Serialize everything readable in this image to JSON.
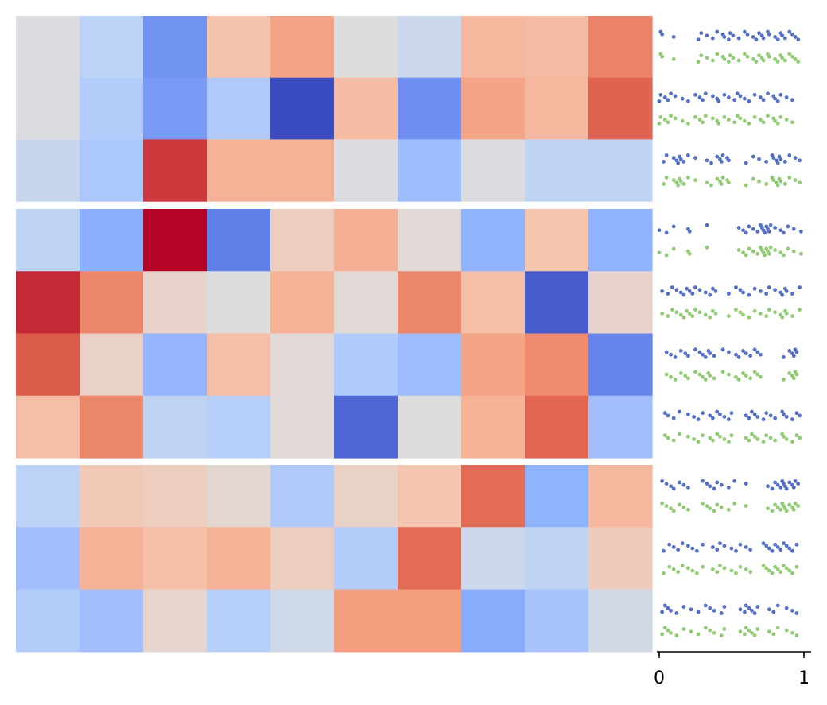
{
  "chart_data": {
    "type": "heatmap",
    "title": "",
    "xlabel": "",
    "ylabel": "",
    "colormap": "coolwarm",
    "value_range": [
      0,
      1
    ],
    "groups": [
      {
        "rows": [
          [
            0.49,
            0.39,
            0.17,
            0.63,
            0.72,
            0.5,
            0.44,
            0.66,
            0.65,
            0.8
          ],
          [
            0.49,
            0.36,
            0.19,
            0.35,
            0.0,
            0.65,
            0.16,
            0.72,
            0.66,
            0.87
          ],
          [
            0.43,
            0.34,
            0.93,
            0.68,
            0.68,
            0.49,
            0.3,
            0.49,
            0.4,
            0.4
          ]
        ]
      },
      {
        "rows": [
          [
            0.4,
            0.25,
            1.0,
            0.12,
            0.58,
            0.69,
            0.52,
            0.26,
            0.62,
            0.26
          ],
          [
            0.95,
            0.79,
            0.55,
            0.5,
            0.68,
            0.52,
            0.79,
            0.64,
            0.04,
            0.55
          ],
          [
            0.88,
            0.56,
            0.27,
            0.64,
            0.52,
            0.35,
            0.3,
            0.72,
            0.78,
            0.13
          ],
          [
            0.64,
            0.79,
            0.4,
            0.37,
            0.52,
            0.06,
            0.5,
            0.68,
            0.86,
            0.31
          ]
        ]
      },
      {
        "rows": [
          [
            0.39,
            0.6,
            0.58,
            0.53,
            0.35,
            0.56,
            0.62,
            0.85,
            0.26,
            0.66
          ],
          [
            0.31,
            0.68,
            0.64,
            0.68,
            0.58,
            0.36,
            0.85,
            0.44,
            0.4,
            0.59
          ],
          [
            0.36,
            0.31,
            0.54,
            0.37,
            0.45,
            0.74,
            0.74,
            0.24,
            0.33,
            0.46
          ]
        ]
      }
    ],
    "side_panel": {
      "type": "scatter",
      "xlim": [
        0,
        1
      ],
      "x_ticks": [
        "0",
        "1"
      ],
      "colors": {
        "series_a": "#5470c6",
        "series_b": "#91cc75"
      },
      "rows": [
        [
          0.01,
          0.02,
          0.1,
          0.27,
          0.29,
          0.33,
          0.37,
          0.4,
          0.44,
          0.45,
          0.48,
          0.49,
          0.51,
          0.55,
          0.59,
          0.61,
          0.65,
          0.67,
          0.69,
          0.71,
          0.72,
          0.75,
          0.76,
          0.8,
          0.82,
          0.84,
          0.85,
          0.87,
          0.9,
          0.92,
          0.94,
          0.96
        ],
        [
          0.0,
          0.01,
          0.04,
          0.06,
          0.08,
          0.11,
          0.16,
          0.2,
          0.25,
          0.28,
          0.3,
          0.32,
          0.37,
          0.4,
          0.41,
          0.45,
          0.48,
          0.52,
          0.54,
          0.56,
          0.59,
          0.62,
          0.66,
          0.7,
          0.72,
          0.75,
          0.79,
          0.8,
          0.82,
          0.84,
          0.88,
          0.92
        ],
        [
          0.03,
          0.05,
          0.1,
          0.12,
          0.13,
          0.14,
          0.15,
          0.17,
          0.2,
          0.25,
          0.33,
          0.36,
          0.4,
          0.42,
          0.43,
          0.44,
          0.47,
          0.48,
          0.6,
          0.65,
          0.69,
          0.74,
          0.78,
          0.79,
          0.81,
          0.82,
          0.83,
          0.84,
          0.87,
          0.9,
          0.94,
          0.97
        ],
        [
          0.0,
          0.05,
          0.1,
          0.2,
          0.21,
          0.33,
          0.55,
          0.58,
          0.6,
          0.62,
          0.65,
          0.68,
          0.7,
          0.71,
          0.72,
          0.73,
          0.74,
          0.75,
          0.76,
          0.77,
          0.8,
          0.84,
          0.86,
          0.89,
          0.93,
          0.98
        ],
        [
          0.02,
          0.06,
          0.09,
          0.12,
          0.15,
          0.17,
          0.19,
          0.21,
          0.23,
          0.25,
          0.28,
          0.32,
          0.35,
          0.37,
          0.39,
          0.48,
          0.53,
          0.56,
          0.58,
          0.62,
          0.66,
          0.7,
          0.74,
          0.76,
          0.8,
          0.84,
          0.85,
          0.87,
          0.88,
          0.92,
          0.97
        ],
        [
          0.05,
          0.08,
          0.11,
          0.15,
          0.18,
          0.2,
          0.25,
          0.28,
          0.3,
          0.32,
          0.34,
          0.35,
          0.38,
          0.44,
          0.48,
          0.53,
          0.55,
          0.58,
          0.6,
          0.63,
          0.66,
          0.68,
          0.7,
          0.86,
          0.9,
          0.92,
          0.93,
          0.94,
          0.95
        ],
        [
          0.04,
          0.06,
          0.1,
          0.14,
          0.2,
          0.24,
          0.27,
          0.3,
          0.35,
          0.37,
          0.4,
          0.42,
          0.45,
          0.48,
          0.5,
          0.6,
          0.62,
          0.64,
          0.66,
          0.68,
          0.72,
          0.74,
          0.77,
          0.8,
          0.85,
          0.86,
          0.88,
          0.92,
          0.95,
          0.97
        ],
        [
          0.02,
          0.05,
          0.08,
          0.1,
          0.14,
          0.17,
          0.2,
          0.3,
          0.33,
          0.35,
          0.38,
          0.4,
          0.43,
          0.48,
          0.52,
          0.6,
          0.75,
          0.78,
          0.8,
          0.82,
          0.84,
          0.85,
          0.86,
          0.87,
          0.88,
          0.9,
          0.92,
          0.93,
          0.94,
          0.96
        ],
        [
          0.03,
          0.07,
          0.1,
          0.13,
          0.16,
          0.2,
          0.23,
          0.26,
          0.3,
          0.37,
          0.4,
          0.42,
          0.45,
          0.5,
          0.53,
          0.56,
          0.6,
          0.63,
          0.72,
          0.74,
          0.76,
          0.78,
          0.8,
          0.82,
          0.84,
          0.86,
          0.88,
          0.9,
          0.92,
          0.95
        ],
        [
          0.02,
          0.04,
          0.06,
          0.08,
          0.12,
          0.17,
          0.22,
          0.27,
          0.32,
          0.35,
          0.38,
          0.43,
          0.45,
          0.56,
          0.59,
          0.6,
          0.62,
          0.64,
          0.66,
          0.68,
          0.76,
          0.79,
          0.82,
          0.88,
          0.92,
          0.95
        ]
      ]
    }
  }
}
